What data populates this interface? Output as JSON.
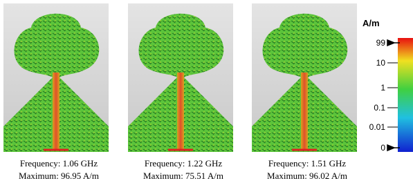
{
  "panels": [
    {
      "frequency": "Frequency:  1.06 GHz",
      "maximum": "Maximum:  96.95 A/m"
    },
    {
      "frequency": "Frequency:  1.22 GHz",
      "maximum": "Maximum:  75.51 A/m"
    },
    {
      "frequency": "Frequency:  1.51 GHz",
      "maximum": "Maximum:  96.02 A/m"
    }
  ],
  "colorbar": {
    "unit": "A/m",
    "ticks": [
      "99",
      "10",
      "1",
      "0.1",
      "0.01",
      "0"
    ]
  }
}
